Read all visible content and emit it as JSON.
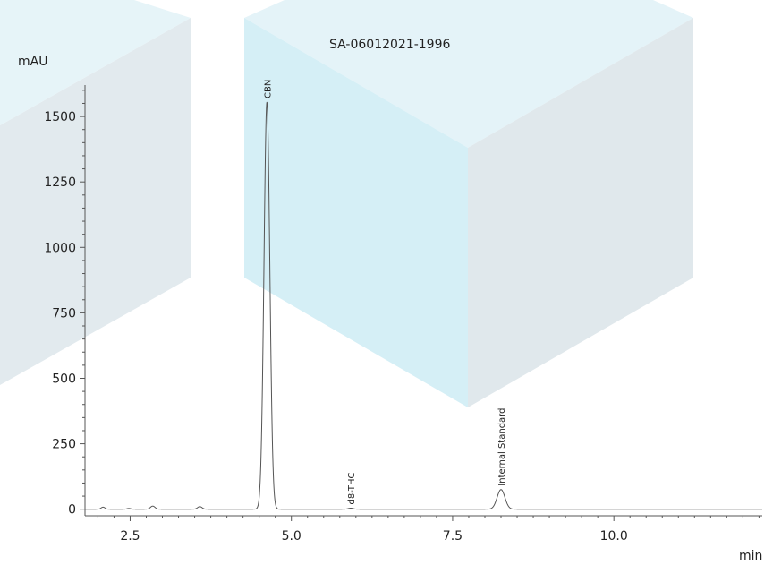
{
  "chart_data": {
    "type": "line",
    "title": "SA-06012021-1996",
    "xlabel": "min",
    "ylabel": "mAU",
    "xlim": [
      1.8,
      12.3
    ],
    "ylim": [
      -25,
      1620
    ],
    "xticks": [
      "2.5",
      "5.0",
      "7.5",
      "10.0"
    ],
    "xtick_values": [
      2.5,
      5.0,
      7.5,
      10.0
    ],
    "yticks": [
      "0",
      "250",
      "500",
      "750",
      "1000",
      "1250",
      "1500"
    ],
    "ytick_values": [
      0,
      250,
      500,
      750,
      1000,
      1250,
      1500
    ],
    "grid": false,
    "series": [
      {
        "color": "#555555",
        "baseline": 0,
        "peaks": [
          {
            "rt": 2.08,
            "height": 8,
            "width": 0.03
          },
          {
            "rt": 2.48,
            "height": 3,
            "width": 0.03
          },
          {
            "rt": 2.85,
            "height": 12,
            "width": 0.035
          },
          {
            "rt": 3.58,
            "height": 10,
            "width": 0.035
          },
          {
            "rt": 4.62,
            "height": 1555,
            "width": 0.045
          },
          {
            "rt": 5.92,
            "height": 4,
            "width": 0.04
          },
          {
            "rt": 8.25,
            "height": 75,
            "width": 0.06
          }
        ]
      }
    ],
    "annotations": [
      {
        "text": "CBN",
        "x": 4.62,
        "y": 1555
      },
      {
        "text": "d8-THC",
        "x": 5.92,
        "y": 4
      },
      {
        "text": "Internal Standard",
        "x": 8.25,
        "y": 75
      }
    ]
  },
  "colors": {
    "watermark_light": "#e4f3f8",
    "watermark_mid": "#d6eff6",
    "watermark_side": "#e0e8ec",
    "axis": "#555555"
  }
}
